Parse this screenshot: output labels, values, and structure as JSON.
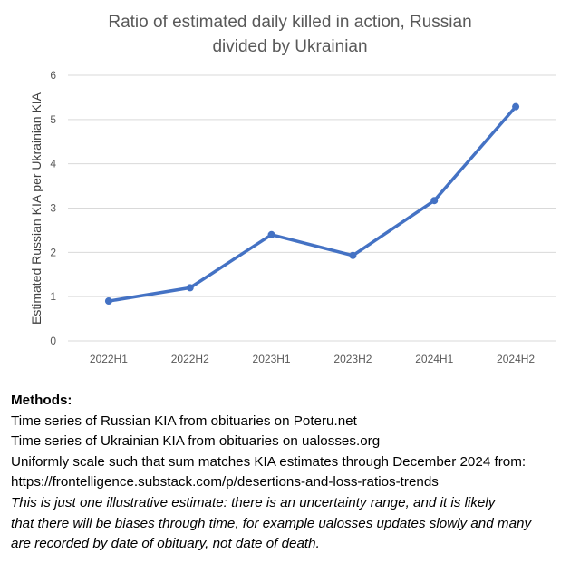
{
  "chart_data": {
    "type": "line",
    "title_lines": [
      "Ratio of estimated daily killed in action, Russian",
      "divided by Ukrainian"
    ],
    "xlabel": "",
    "ylabel": "Estimated Russian KIA per Ukrainian KIA",
    "categories": [
      "2022H1",
      "2022H2",
      "2023H1",
      "2023H2",
      "2024H1",
      "2024H2"
    ],
    "series": [
      {
        "name": "Ratio",
        "values": [
          0.9,
          1.2,
          2.4,
          1.93,
          3.17,
          5.29
        ],
        "color": "#4472C4"
      }
    ],
    "ylim": [
      0,
      6
    ],
    "yticks": [
      "0",
      "1",
      "2",
      "3",
      "4",
      "5",
      "6"
    ],
    "grid": true,
    "gridColor": "#D9D9D9"
  },
  "methods": {
    "heading": "Methods:",
    "lines": [
      "Time series of Russian KIA from obituaries on Poteru.net",
      "Time series of Ukrainian KIA from obituaries on ualosses.org",
      "Uniformly scale such that sum matches KIA estimates through December 2024 from:",
      "https://frontelligence.substack.com/p/desertions-and-loss-ratios-trends"
    ],
    "note_lines": [
      "This is just one illustrative estimate: there is an uncertainty range, and it is likely",
      "that there will be biases through time, for example ualosses updates slowly and many",
      "are recorded by date of obituary, not date of death."
    ]
  }
}
